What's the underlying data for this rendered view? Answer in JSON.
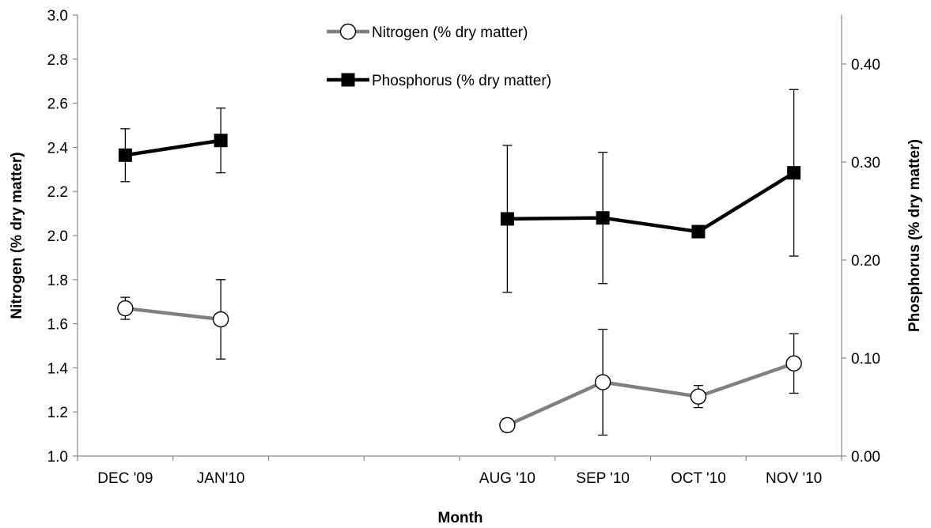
{
  "chart_data": {
    "type": "line",
    "categories": [
      "DEC '09",
      "JAN'10",
      "",
      "",
      "AUG '10",
      "SEP '10",
      "OCT '10",
      "NOV '10"
    ],
    "xlabel": "Month",
    "ylabel_left": "Nitrogen (% dry matter)",
    "ylabel_right": "Phosphorus (% dry matter)",
    "ylim_left": [
      1.0,
      3.0
    ],
    "yticks_left": [
      "1.0",
      "1.2",
      "1.4",
      "1.6",
      "1.8",
      "2.0",
      "2.2",
      "2.4",
      "2.6",
      "2.8",
      "3.0"
    ],
    "ylim_right": [
      0.0,
      0.45
    ],
    "yticks_right": [
      "0.00",
      "0.10",
      "0.20",
      "0.30",
      "0.40"
    ],
    "grid": false,
    "legend_position": "top-center",
    "series": [
      {
        "name": "Nitrogen (% dry matter)",
        "axis": "left",
        "marker": "circle",
        "color": "#808080",
        "segments": [
          [
            {
              "x": "DEC '09",
              "y": 1.67,
              "err": 0.05
            },
            {
              "x": "JAN'10",
              "y": 1.62,
              "err": 0.18
            }
          ],
          [
            {
              "x": "AUG '10",
              "y": 1.14,
              "err": 0.03
            },
            {
              "x": "SEP '10",
              "y": 1.335,
              "err": 0.24
            },
            {
              "x": "OCT '10",
              "y": 1.27,
              "err": 0.05
            },
            {
              "x": "NOV '10",
              "y": 1.42,
              "err": 0.135
            }
          ]
        ]
      },
      {
        "name": "Phosphorus (% dry matter)",
        "axis": "right",
        "marker": "square",
        "color": "#000000",
        "segments": [
          [
            {
              "x": "DEC '09",
              "y": 0.307,
              "err": 0.027
            },
            {
              "x": "JAN'10",
              "y": 0.322,
              "err": 0.033
            }
          ],
          [
            {
              "x": "AUG '10",
              "y": 0.242,
              "err": 0.075
            },
            {
              "x": "SEP '10",
              "y": 0.243,
              "err": 0.067
            },
            {
              "x": "OCT '10",
              "y": 0.229,
              "err": 0.003
            },
            {
              "x": "NOV '10",
              "y": 0.289,
              "err": 0.085
            }
          ]
        ]
      }
    ]
  }
}
